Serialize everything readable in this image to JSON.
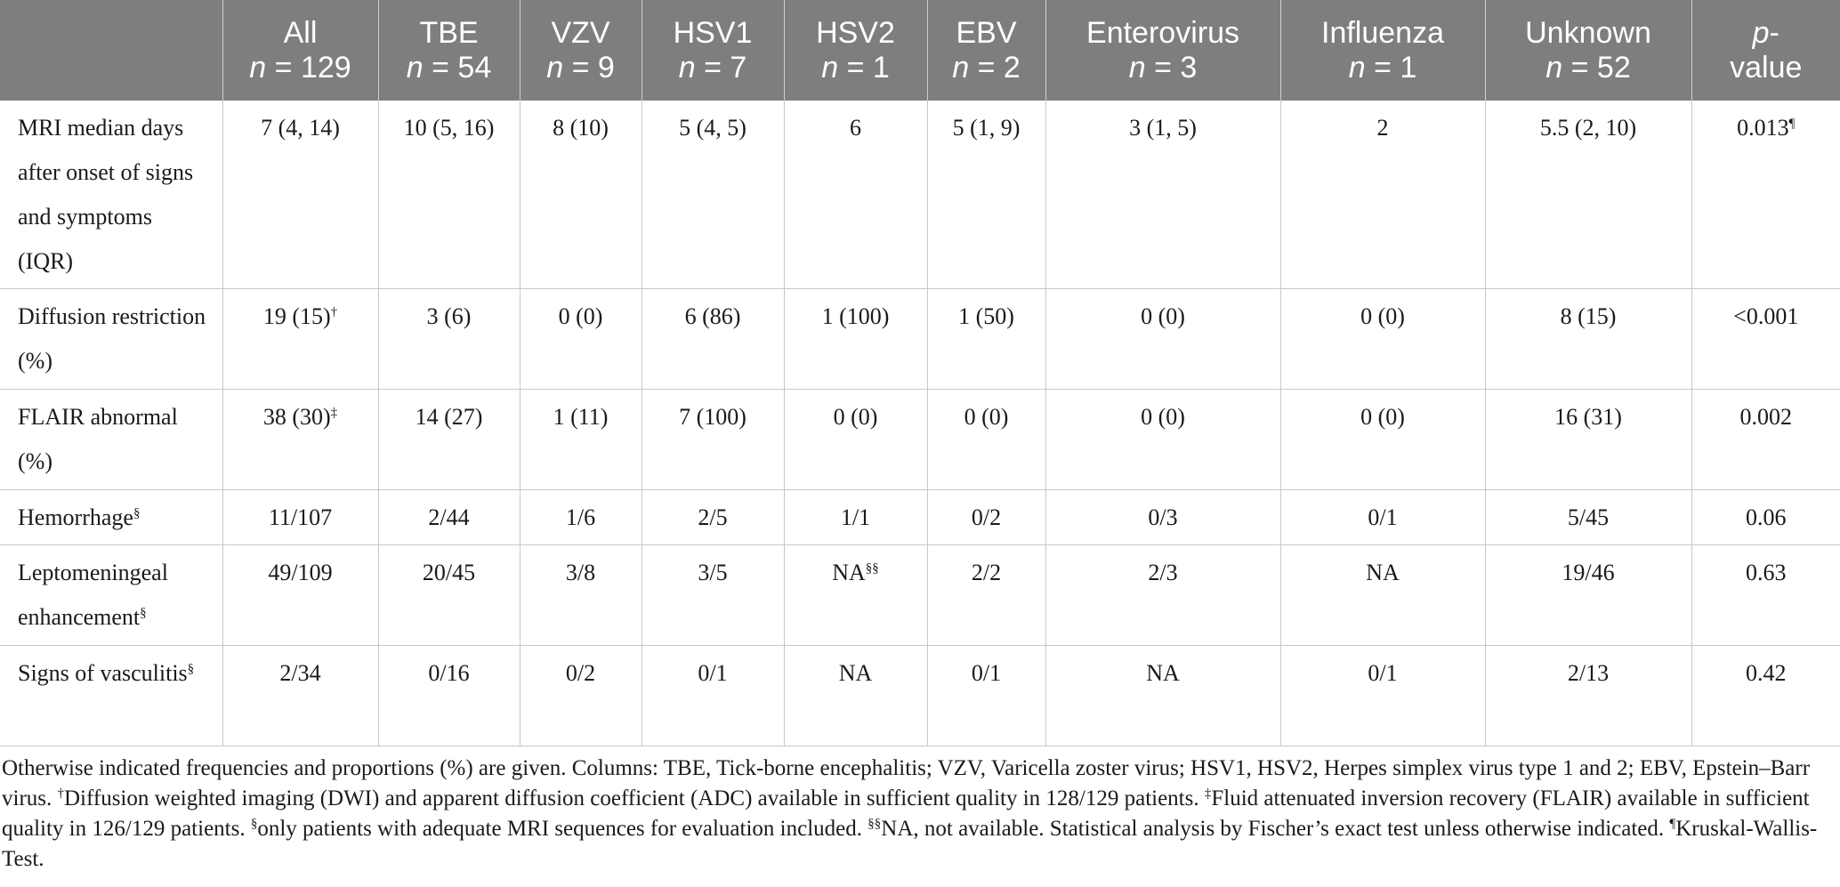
{
  "table": {
    "headers": [
      {
        "name": "",
        "n": ""
      },
      {
        "name": "All",
        "n": "129"
      },
      {
        "name": "TBE",
        "n": "54"
      },
      {
        "name": "VZV",
        "n": "9"
      },
      {
        "name": "HSV1",
        "n": "7"
      },
      {
        "name": "HSV2",
        "n": "1"
      },
      {
        "name": "EBV",
        "n": "2"
      },
      {
        "name": "Enterovirus",
        "n": "3"
      },
      {
        "name": "Influenza",
        "n": "1"
      },
      {
        "name": "Unknown",
        "n": "52"
      },
      {
        "name_italic": "p",
        "name_suffix": "-",
        "line2": "value"
      }
    ],
    "n_prefix": "n",
    "n_eq": " = ",
    "rows": [
      {
        "label": "MRI median days after onset of signs and symptoms (IQR)",
        "label_sup": "",
        "cells": [
          "7 (4, 14)",
          "10 (5, 16)",
          "8 (10)",
          "5 (4, 5)",
          "6",
          "5 (1, 9)",
          "3 (1, 5)",
          "2",
          "5.5 (2, 10)",
          "0.013"
        ],
        "sups": [
          "",
          "",
          "",
          "",
          "",
          "",
          "",
          "",
          "",
          "¶"
        ]
      },
      {
        "label": "Diffusion restriction (%)",
        "label_sup": "",
        "cells": [
          "19 (15)",
          "3 (6)",
          "0 (0)",
          "6 (86)",
          "1 (100)",
          "1 (50)",
          "0 (0)",
          "0 (0)",
          "8 (15)",
          "<0.001"
        ],
        "sups": [
          "†",
          "",
          "",
          "",
          "",
          "",
          "",
          "",
          "",
          ""
        ]
      },
      {
        "label": "FLAIR abnormal (%)",
        "label_sup": "",
        "cells": [
          "38 (30)",
          "14 (27)",
          "1 (11)",
          "7 (100)",
          "0 (0)",
          "0 (0)",
          "0 (0)",
          "0 (0)",
          "16 (31)",
          "0.002"
        ],
        "sups": [
          "‡",
          "",
          "",
          "",
          "",
          "",
          "",
          "",
          "",
          ""
        ]
      },
      {
        "label": "Hemorrhage",
        "label_sup": "§",
        "cells": [
          "11/107",
          "2/44",
          "1/6",
          "2/5",
          "1/1",
          "0/2",
          "0/3",
          "0/1",
          "5/45",
          "0.06"
        ],
        "sups": [
          "",
          "",
          "",
          "",
          "",
          "",
          "",
          "",
          "",
          ""
        ]
      },
      {
        "label": "Leptomeningeal enhancement",
        "label_sup": "§",
        "cells": [
          "49/109",
          "20/45",
          "3/8",
          "3/5",
          "NA",
          "2/2",
          "2/3",
          "NA",
          "19/46",
          "0.63"
        ],
        "sups": [
          "",
          "",
          "",
          "",
          "§§",
          "",
          "",
          "",
          "",
          ""
        ]
      },
      {
        "label": "Signs of vasculitis",
        "label_sup": "§",
        "cells": [
          "2/34",
          "0/16",
          "0/2",
          "0/1",
          "NA",
          "0/1",
          "NA",
          "0/1",
          "2/13",
          "0.42"
        ],
        "sups": [
          "",
          "",
          "",
          "",
          "",
          "",
          "",
          "",
          "",
          ""
        ]
      }
    ]
  },
  "footnote": {
    "p1": "Otherwise indicated frequencies and proportions (%) are given. Columns: TBE, Tick-borne encephalitis; VZV, Varicella zoster virus; HSV1, HSV2, Herpes simplex virus type 1 and 2; EBV, Epstein–Barr virus. ",
    "s1": "†",
    "p2": "Diffusion weighted imaging (DWI) and apparent diffusion coefficient (ADC) available in sufficient quality in 128/129 patients. ",
    "s2": "‡",
    "p3": "Fluid attenuated inversion recovery (FLAIR) available in sufficient quality in 126/129 patients. ",
    "s3": "§",
    "p4": "only patients with adequate MRI sequences for evaluation included. ",
    "s4": "§§",
    "p5": "NA, not available. Statistical analysis by Fischer’s exact test unless otherwise indicated. ",
    "s5": "¶",
    "p6": "Kruskal-Wallis-Test."
  }
}
